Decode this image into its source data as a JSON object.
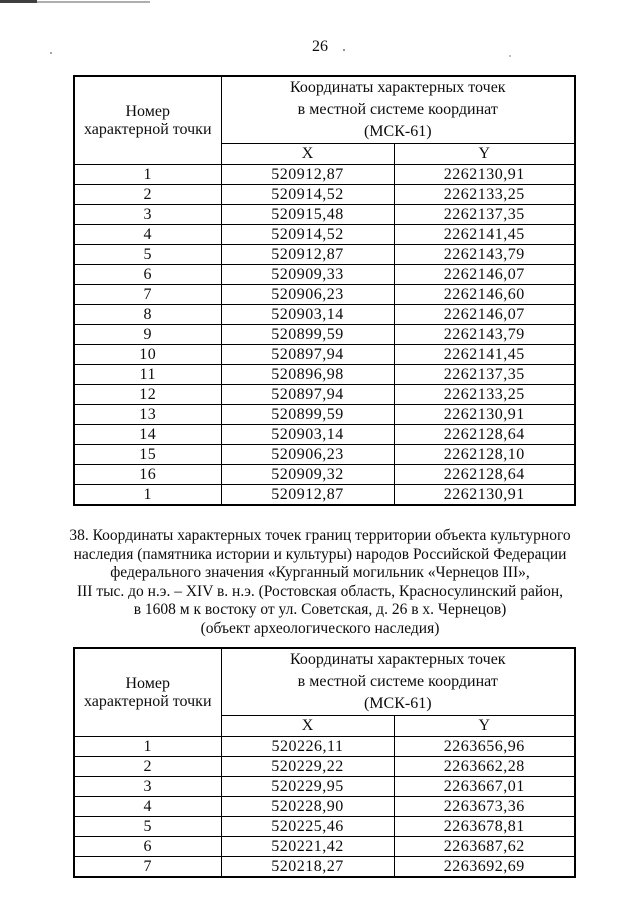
{
  "page_number": "26",
  "section": {
    "lines": [
      "38. Координаты характерных точек границ территории объекта культурного",
      "наследия (памятника истории и культуры) народов Российской Федерации",
      "федерального значения «Курганный могильник «Чернецов III»,",
      "III тыс. до н.э. – XIV в. н.э. (Ростовская область, Красносулинский район,",
      "в 1608 м к востоку от ул. Советская, д. 26 в х. Чернецов)",
      "(объект археологического наследия)"
    ]
  },
  "tables": [
    {
      "header": {
        "point_line1": "Номер",
        "point_line2": "характерной точки",
        "coords_line1": "Координаты характерных точек",
        "coords_line2": "в местной системе координат",
        "coords_line3": "(МСК-61)",
        "x": "X",
        "y": "Y"
      },
      "rows": [
        [
          "1",
          "520912,87",
          "2262130,91"
        ],
        [
          "2",
          "520914,52",
          "2262133,25"
        ],
        [
          "3",
          "520915,48",
          "2262137,35"
        ],
        [
          "4",
          "520914,52",
          "2262141,45"
        ],
        [
          "5",
          "520912,87",
          "2262143,79"
        ],
        [
          "6",
          "520909,33",
          "2262146,07"
        ],
        [
          "7",
          "520906,23",
          "2262146,60"
        ],
        [
          "8",
          "520903,14",
          "2262146,07"
        ],
        [
          "9",
          "520899,59",
          "2262143,79"
        ],
        [
          "10",
          "520897,94",
          "2262141,45"
        ],
        [
          "11",
          "520896,98",
          "2262137,35"
        ],
        [
          "12",
          "520897,94",
          "2262133,25"
        ],
        [
          "13",
          "520899,59",
          "2262130,91"
        ],
        [
          "14",
          "520903,14",
          "2262128,64"
        ],
        [
          "15",
          "520906,23",
          "2262128,10"
        ],
        [
          "16",
          "520909,32",
          "2262128,64"
        ],
        [
          "1",
          "520912,87",
          "2262130,91"
        ]
      ]
    },
    {
      "header": {
        "point_line1": "Номер",
        "point_line2": "характерной точки",
        "coords_line1": "Координаты характерных точек",
        "coords_line2": "в местной системе координат",
        "coords_line3": "(МСК-61)",
        "x": "X",
        "y": "Y"
      },
      "rows": [
        [
          "1",
          "520226,11",
          "2263656,96"
        ],
        [
          "2",
          "520229,22",
          "2263662,28"
        ],
        [
          "3",
          "520229,95",
          "2263667,01"
        ],
        [
          "4",
          "520228,90",
          "2263673,36"
        ],
        [
          "5",
          "520225,46",
          "2263678,81"
        ],
        [
          "6",
          "520221,42",
          "2263687,62"
        ],
        [
          "7",
          "520218,27",
          "2263692,69"
        ]
      ]
    }
  ]
}
